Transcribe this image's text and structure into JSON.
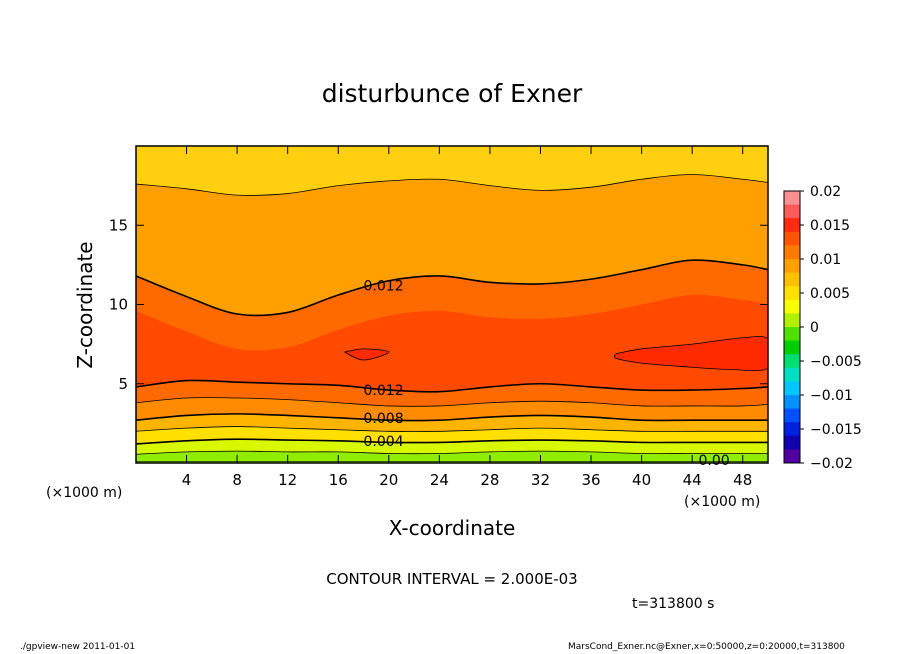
{
  "chart_data": {
    "type": "contour",
    "title": "disturbunce of Exner",
    "xlabel": "X-coordinate",
    "ylabel": "Z-coordinate",
    "x_unit_left": "(×1000 m)",
    "x_unit_right": "(×1000 m)",
    "xlim": [
      0,
      50
    ],
    "ylim": [
      0,
      20
    ],
    "x_ticks": [
      "4",
      "8",
      "12",
      "16",
      "20",
      "24",
      "28",
      "32",
      "36",
      "40",
      "44",
      "48"
    ],
    "y_ticks": [
      "5",
      "10",
      "15"
    ],
    "contour_interval_text": "CONTOUR INTERVAL = 2.000E-03",
    "time_text": "t=313800 s",
    "contour_labels": [
      {
        "text": "0.012",
        "x": 18.0,
        "z": 11.2
      },
      {
        "text": "0.012",
        "x": 18.0,
        "z": 4.6
      },
      {
        "text": "0.008",
        "x": 18.0,
        "z": 2.85
      },
      {
        "text": "0.004",
        "x": 18.0,
        "z": 1.4
      },
      {
        "text": "0.00",
        "x": 44.5,
        "z": 0.2
      }
    ],
    "contours": [
      {
        "level": 0.012,
        "points": [
          [
            0,
            11.8
          ],
          [
            4,
            10.5
          ],
          [
            8,
            9.4
          ],
          [
            12,
            9.5
          ],
          [
            16,
            10.6
          ],
          [
            20,
            11.5
          ],
          [
            24,
            11.8
          ],
          [
            28,
            11.4
          ],
          [
            32,
            11.3
          ],
          [
            36,
            11.6
          ],
          [
            40,
            12.2
          ],
          [
            44,
            12.8
          ],
          [
            48,
            12.5
          ],
          [
            50,
            12.2
          ]
        ]
      },
      {
        "level": 0.01,
        "points": [
          [
            0,
            17.6
          ],
          [
            4,
            17.3
          ],
          [
            8,
            16.9
          ],
          [
            12,
            17.0
          ],
          [
            16,
            17.5
          ],
          [
            20,
            17.8
          ],
          [
            24,
            17.9
          ],
          [
            28,
            17.5
          ],
          [
            32,
            17.2
          ],
          [
            36,
            17.4
          ],
          [
            40,
            17.9
          ],
          [
            44,
            18.2
          ],
          [
            48,
            17.9
          ],
          [
            50,
            17.7
          ]
        ]
      },
      {
        "level": 0.012,
        "points": [
          [
            0,
            4.8
          ],
          [
            4,
            5.2
          ],
          [
            8,
            5.1
          ],
          [
            12,
            5.0
          ],
          [
            16,
            4.9
          ],
          [
            20,
            4.6
          ],
          [
            24,
            4.5
          ],
          [
            28,
            4.8
          ],
          [
            32,
            5.0
          ],
          [
            36,
            4.8
          ],
          [
            40,
            4.6
          ],
          [
            44,
            4.6
          ],
          [
            48,
            4.7
          ],
          [
            50,
            4.8
          ]
        ]
      },
      {
        "level": 0.01,
        "points": [
          [
            0,
            3.8
          ],
          [
            4,
            4.1
          ],
          [
            8,
            4.1
          ],
          [
            12,
            4.0
          ],
          [
            16,
            3.8
          ],
          [
            20,
            3.6
          ],
          [
            24,
            3.6
          ],
          [
            28,
            3.8
          ],
          [
            32,
            3.9
          ],
          [
            36,
            3.8
          ],
          [
            40,
            3.6
          ],
          [
            44,
            3.6
          ],
          [
            48,
            3.6
          ],
          [
            50,
            3.7
          ]
        ]
      },
      {
        "level": 0.008,
        "points": [
          [
            0,
            2.7
          ],
          [
            4,
            3.0
          ],
          [
            8,
            3.1
          ],
          [
            12,
            3.0
          ],
          [
            16,
            2.85
          ],
          [
            20,
            2.7
          ],
          [
            24,
            2.7
          ],
          [
            28,
            2.9
          ],
          [
            32,
            3.0
          ],
          [
            36,
            2.9
          ],
          [
            40,
            2.7
          ],
          [
            44,
            2.7
          ],
          [
            48,
            2.7
          ],
          [
            50,
            2.7
          ]
        ]
      },
      {
        "level": 0.006,
        "points": [
          [
            0,
            2.0
          ],
          [
            4,
            2.2
          ],
          [
            8,
            2.3
          ],
          [
            12,
            2.2
          ],
          [
            16,
            2.1
          ],
          [
            20,
            2.0
          ],
          [
            24,
            2.0
          ],
          [
            28,
            2.1
          ],
          [
            32,
            2.2
          ],
          [
            36,
            2.1
          ],
          [
            40,
            2.0
          ],
          [
            44,
            2.0
          ],
          [
            48,
            2.0
          ],
          [
            50,
            2.0
          ]
        ]
      },
      {
        "level": 0.004,
        "points": [
          [
            0,
            1.2
          ],
          [
            4,
            1.4
          ],
          [
            8,
            1.5
          ],
          [
            12,
            1.45
          ],
          [
            16,
            1.4
          ],
          [
            20,
            1.3
          ],
          [
            24,
            1.3
          ],
          [
            28,
            1.4
          ],
          [
            32,
            1.45
          ],
          [
            36,
            1.4
          ],
          [
            40,
            1.3
          ],
          [
            44,
            1.3
          ],
          [
            48,
            1.3
          ],
          [
            50,
            1.3
          ]
        ]
      },
      {
        "level": 0.002,
        "points": [
          [
            0,
            0.55
          ],
          [
            4,
            0.7
          ],
          [
            8,
            0.75
          ],
          [
            12,
            0.7
          ],
          [
            16,
            0.7
          ],
          [
            20,
            0.6
          ],
          [
            24,
            0.6
          ],
          [
            28,
            0.7
          ],
          [
            32,
            0.75
          ],
          [
            36,
            0.7
          ],
          [
            40,
            0.6
          ],
          [
            44,
            0.6
          ],
          [
            48,
            0.6
          ],
          [
            50,
            0.6
          ]
        ]
      }
    ],
    "closed_contours": [
      {
        "level": 0.014,
        "points": [
          [
            16.5,
            7.0
          ],
          [
            18,
            7.2
          ],
          [
            20,
            7.0
          ],
          [
            18,
            6.5
          ]
        ]
      },
      {
        "level": 0.014,
        "points": [
          [
            38,
            6.9
          ],
          [
            40,
            7.2
          ],
          [
            44,
            7.5
          ],
          [
            48,
            7.9
          ],
          [
            50,
            7.8
          ],
          [
            50,
            6.0
          ],
          [
            47,
            5.9
          ],
          [
            43,
            6.1
          ],
          [
            40,
            6.3
          ],
          [
            38,
            6.6
          ]
        ]
      }
    ],
    "colorbar": {
      "ticks": [
        "0.02",
        "0.015",
        "0.01",
        "0.005",
        "0",
        "−0.005",
        "−0.01",
        "−0.015",
        "−0.02"
      ],
      "colors": [
        "#ff9090",
        "#ff5a5a",
        "#ff2a10",
        "#ff5500",
        "#ff7b00",
        "#ffa000",
        "#ffc000",
        "#ffe000",
        "#f8ff00",
        "#b0f000",
        "#50e000",
        "#00d000",
        "#00e070",
        "#00e0c0",
        "#00c8ff",
        "#0090ff",
        "#0050ff",
        "#0020e0",
        "#1000b0",
        "#5000a0"
      ]
    },
    "band_colors": [
      "#26d400",
      "#6ee000",
      "#b8f000",
      "#f0ff00",
      "#ffd200",
      "#ffa000",
      "#ff8000",
      "#ff6800",
      "#ff4800",
      "#ff3000"
    ]
  },
  "footer": {
    "left": "./gpview-new   2011-01-01",
    "right": "MarsCond_Exner.nc@Exner,x=0:50000,z=0:20000,t=313800"
  }
}
